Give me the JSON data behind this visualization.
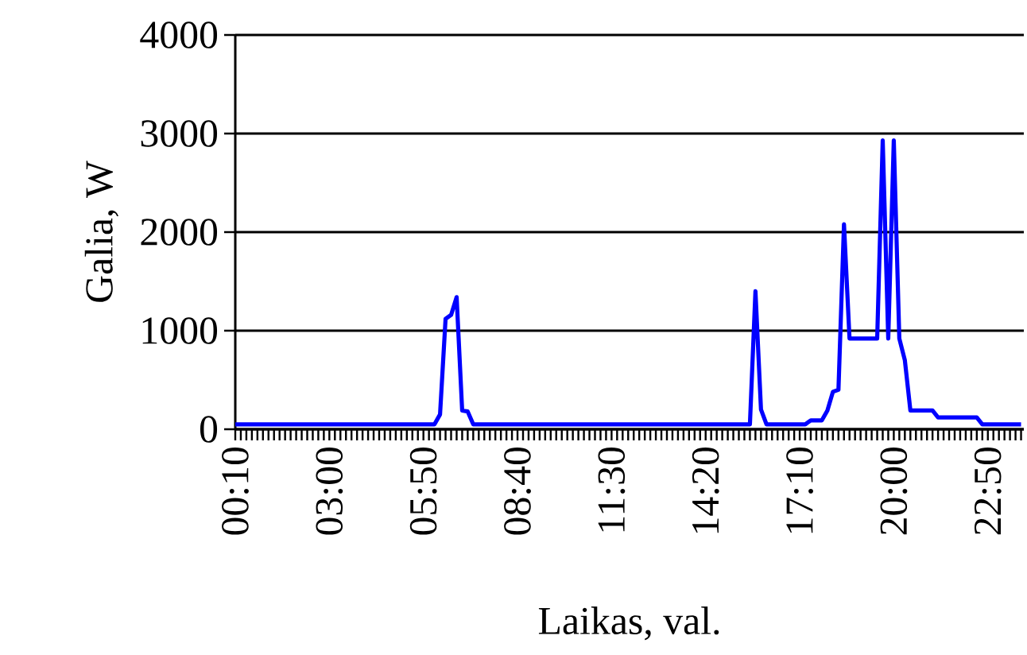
{
  "chart_data": {
    "type": "line",
    "xlabel": "Laikas, val.",
    "ylabel": "Galia, W",
    "categories": [
      "00:10",
      null,
      null,
      null,
      null,
      null,
      null,
      null,
      null,
      null,
      null,
      null,
      null,
      null,
      null,
      null,
      null,
      "03:00",
      null,
      null,
      null,
      null,
      null,
      null,
      null,
      null,
      null,
      null,
      null,
      null,
      null,
      null,
      null,
      null,
      "05:50",
      null,
      null,
      null,
      null,
      null,
      null,
      null,
      null,
      null,
      null,
      null,
      null,
      null,
      null,
      null,
      null,
      "08:40",
      null,
      null,
      null,
      null,
      null,
      null,
      null,
      null,
      null,
      null,
      null,
      null,
      null,
      null,
      null,
      null,
      "11:30",
      null,
      null,
      null,
      null,
      null,
      null,
      null,
      null,
      null,
      null,
      null,
      null,
      null,
      null,
      null,
      null,
      "14:20",
      null,
      null,
      null,
      null,
      null,
      null,
      null,
      null,
      null,
      null,
      null,
      null,
      null,
      null,
      null,
      null,
      "17:10",
      null,
      null,
      null,
      null,
      null,
      null,
      null,
      null,
      null,
      null,
      null,
      null,
      null,
      null,
      null,
      null,
      "20:00",
      null,
      null,
      null,
      null,
      null,
      null,
      null,
      null,
      null,
      null,
      null,
      null,
      null,
      null,
      null,
      null,
      "22:50",
      null,
      null,
      null,
      null,
      null,
      null
    ],
    "series": [
      {
        "color": "#0000ff",
        "values": [
          50,
          50,
          50,
          50,
          50,
          50,
          50,
          50,
          50,
          50,
          50,
          50,
          50,
          50,
          50,
          50,
          50,
          50,
          50,
          50,
          50,
          50,
          50,
          50,
          50,
          50,
          50,
          50,
          50,
          50,
          50,
          50,
          50,
          50,
          50,
          50,
          50,
          150,
          1120,
          1160,
          1340,
          190,
          180,
          50,
          50,
          50,
          50,
          50,
          50,
          50,
          50,
          50,
          50,
          50,
          50,
          50,
          50,
          50,
          50,
          50,
          50,
          50,
          50,
          50,
          50,
          50,
          50,
          50,
          50,
          50,
          50,
          50,
          50,
          50,
          50,
          50,
          50,
          50,
          50,
          50,
          50,
          50,
          50,
          50,
          50,
          50,
          50,
          50,
          50,
          50,
          50,
          50,
          50,
          50,
          1400,
          200,
          50,
          50,
          50,
          50,
          50,
          50,
          50,
          50,
          90,
          90,
          90,
          190,
          380,
          400,
          2080,
          920,
          920,
          920,
          920,
          920,
          920,
          2930,
          920,
          2930,
          920,
          700,
          190,
          190,
          190,
          190,
          190,
          120,
          120,
          120,
          120,
          120,
          120,
          120,
          120,
          50,
          50,
          50,
          50,
          50,
          50,
          50,
          50
        ]
      }
    ],
    "ylim": [
      0,
      4000
    ],
    "yticks": [
      0,
      1000,
      2000,
      3000,
      4000
    ],
    "grid": "y",
    "line_style": "solid"
  }
}
